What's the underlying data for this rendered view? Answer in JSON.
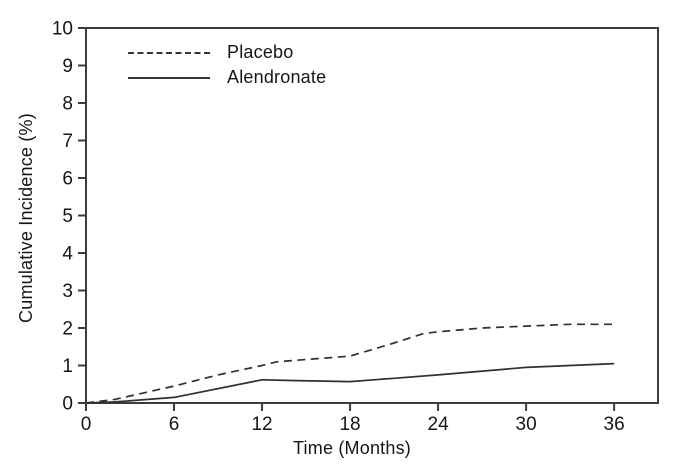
{
  "chart_data": {
    "type": "line",
    "title": "",
    "xlabel": "Time (Months)",
    "ylabel": "Cumulative Incidence (%)",
    "xlim": [
      0,
      39
    ],
    "ylim": [
      0,
      10
    ],
    "x_ticks": [
      0,
      6,
      12,
      18,
      24,
      30,
      36
    ],
    "y_ticks": [
      0,
      1,
      2,
      3,
      4,
      5,
      6,
      7,
      8,
      9,
      10
    ],
    "grid": false,
    "legend_position": "top-left-inside",
    "line_color": "#303030",
    "axis_color": "#3c3c3c",
    "categories": [
      0,
      6,
      12,
      18,
      24,
      30,
      36
    ],
    "series": [
      {
        "name": "Placebo",
        "line_style": "dashed",
        "values": [
          0,
          0.45,
          1.0,
          1.25,
          1.9,
          2.05,
          2.1
        ],
        "points": [
          [
            0,
            0
          ],
          [
            2,
            0.1
          ],
          [
            6,
            0.45
          ],
          [
            9,
            0.75
          ],
          [
            12,
            1.0
          ],
          [
            13,
            1.1
          ],
          [
            18,
            1.25
          ],
          [
            21,
            1.6
          ],
          [
            23,
            1.85
          ],
          [
            24,
            1.9
          ],
          [
            27,
            2.0
          ],
          [
            30,
            2.05
          ],
          [
            33,
            2.1
          ],
          [
            36,
            2.1
          ]
        ]
      },
      {
        "name": "Alendronate",
        "line_style": "solid",
        "values": [
          0,
          0.15,
          0.62,
          0.57,
          0.75,
          0.95,
          1.05
        ],
        "points": [
          [
            0,
            0
          ],
          [
            2,
            0.03
          ],
          [
            6,
            0.15
          ],
          [
            12,
            0.62
          ],
          [
            14,
            0.6
          ],
          [
            18,
            0.57
          ],
          [
            21,
            0.66
          ],
          [
            24,
            0.75
          ],
          [
            30,
            0.95
          ],
          [
            33,
            1.0
          ],
          [
            36,
            1.05
          ]
        ]
      }
    ]
  }
}
